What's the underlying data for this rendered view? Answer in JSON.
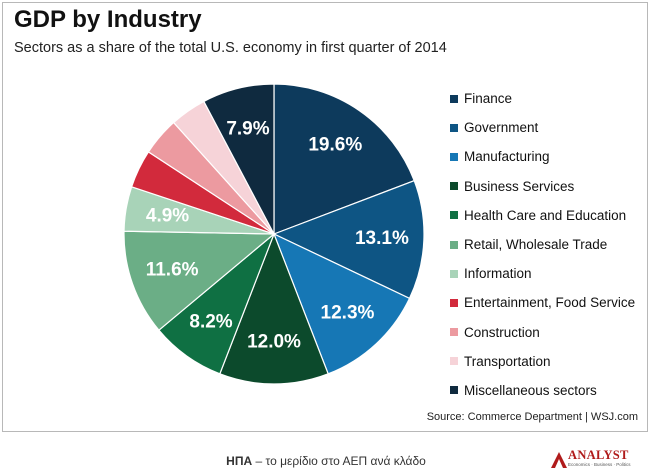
{
  "chart_data": {
    "type": "pie",
    "title": "GDP by Industry",
    "subtitle": "Sectors as a share of the total U.S. economy in first quarter of 2014",
    "slices": [
      {
        "label": "Finance",
        "value": 19.6,
        "value_label": "19.6%",
        "color": "#0d3a5c"
      },
      {
        "label": "Government",
        "value": 13.1,
        "value_label": "13.1%",
        "color": "#0e5584"
      },
      {
        "label": "Manufacturing",
        "value": 12.3,
        "value_label": "12.3%",
        "color": "#1677b5"
      },
      {
        "label": "Business Services",
        "value": 12.0,
        "value_label": "12.0%",
        "color": "#0c4a2c"
      },
      {
        "label": "Health Care and Education",
        "value": 8.2,
        "value_label": "8.2%",
        "color": "#0f7043"
      },
      {
        "label": "Retail, Wholesale Trade",
        "value": 11.6,
        "value_label": "11.6%",
        "color": "#6bae86"
      },
      {
        "label": "Information",
        "value": 4.9,
        "value_label": "4.9%",
        "color": "#a8d3b8"
      },
      {
        "label": "Entertainment, Food Service",
        "value": 4.2,
        "value_label": "",
        "color": "#d22a3c"
      },
      {
        "label": "Construction",
        "value": 4.2,
        "value_label": "",
        "color": "#ec9aa0"
      },
      {
        "label": "Transportation",
        "value": 4.0,
        "value_label": "",
        "color": "#f6d3d8"
      },
      {
        "label": "Miscellaneous sectors",
        "value": 7.9,
        "value_label": "7.9%",
        "color": "#0f2a3f"
      }
    ],
    "start_angle_deg": 0,
    "direction": "clockwise",
    "legend_placement": "right"
  },
  "source": "Source: Commerce Department  |  WSJ.com",
  "caption": {
    "bold": "ΗΠΑ",
    "rest": " – το μερίδιο στο ΑΕΠ ανά κλάδο"
  },
  "logo": {
    "word": "ANALYST",
    "tagline": "Economics · Business · Politics"
  }
}
